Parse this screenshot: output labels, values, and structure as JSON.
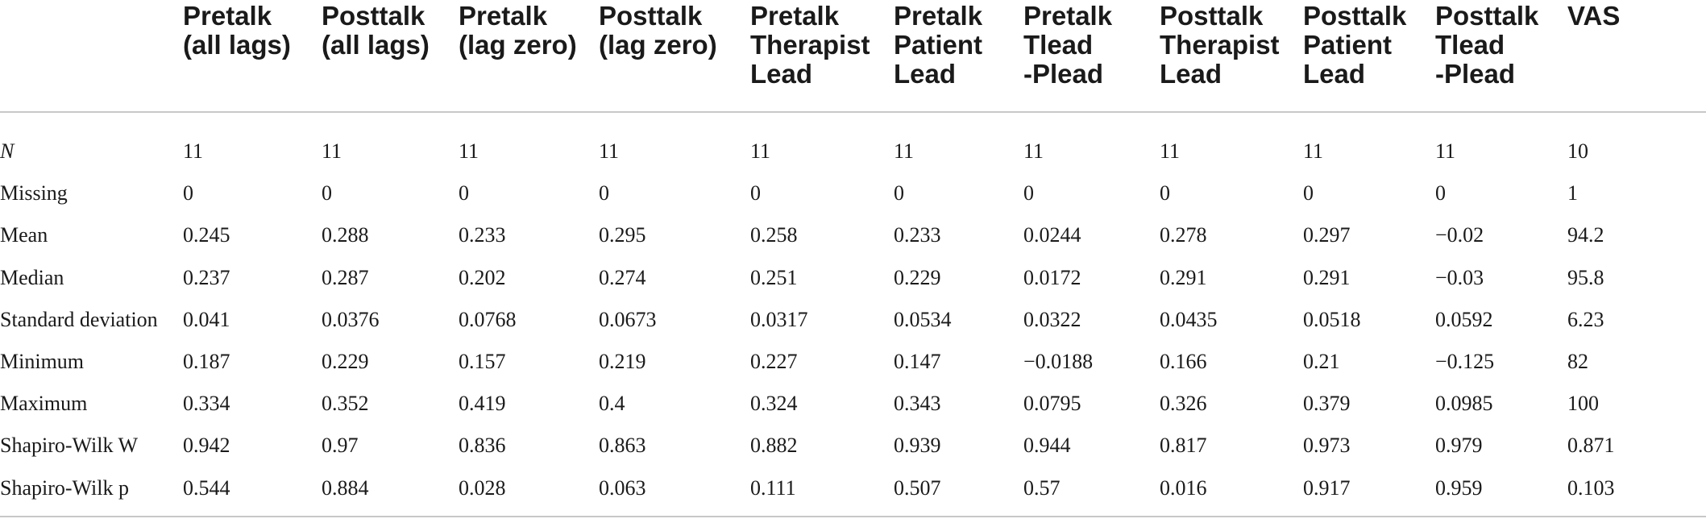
{
  "table": {
    "corner": "",
    "headers": [
      "Pretalk\n(all lags)",
      "Posttalk\n(all lags)",
      "Pretalk\n(lag zero)",
      "Posttalk\n(lag zero)",
      "Pretalk\nTherapist\nLead",
      "Pretalk\nPatient\nLead",
      "Pretalk\nTlead\n-Plead",
      "Posttalk\nTherapist\nLead",
      "Posttalk\nPatient\nLead",
      "Posttalk\nTlead\n-Plead",
      "VAS"
    ],
    "rows": [
      {
        "label": "N",
        "values": [
          "11",
          "11",
          "11",
          "11",
          "11",
          "11",
          "11",
          "11",
          "11",
          "11",
          "10"
        ]
      },
      {
        "label": "Missing",
        "values": [
          "0",
          "0",
          "0",
          "0",
          "0",
          "0",
          "0",
          "0",
          "0",
          "0",
          "1"
        ]
      },
      {
        "label": "Mean",
        "values": [
          "0.245",
          "0.288",
          "0.233",
          "0.295",
          "0.258",
          "0.233",
          "0.0244",
          "0.278",
          "0.297",
          "−0.02",
          "94.2"
        ]
      },
      {
        "label": "Median",
        "values": [
          "0.237",
          "0.287",
          "0.202",
          "0.274",
          "0.251",
          "0.229",
          "0.0172",
          "0.291",
          "0.291",
          "−0.03",
          "95.8"
        ]
      },
      {
        "label": "Standard deviation",
        "values": [
          "0.041",
          "0.0376",
          "0.0768",
          "0.0673",
          "0.0317",
          "0.0534",
          "0.0322",
          "0.0435",
          "0.0518",
          "0.0592",
          "6.23"
        ]
      },
      {
        "label": "Minimum",
        "values": [
          "0.187",
          "0.229",
          "0.157",
          "0.219",
          "0.227",
          "0.147",
          "−0.0188",
          "0.166",
          "0.21",
          "−0.125",
          "82"
        ]
      },
      {
        "label": "Maximum",
        "values": [
          "0.334",
          "0.352",
          "0.419",
          "0.4",
          "0.324",
          "0.343",
          "0.0795",
          "0.326",
          "0.379",
          "0.0985",
          "100"
        ]
      },
      {
        "label": "Shapiro-Wilk W",
        "values": [
          "0.942",
          "0.97",
          "0.836",
          "0.863",
          "0.882",
          "0.939",
          "0.944",
          "0.817",
          "0.973",
          "0.979",
          "0.871"
        ]
      },
      {
        "label": "Shapiro-Wilk p",
        "values": [
          "0.544",
          "0.884",
          "0.028",
          "0.063",
          "0.111",
          "0.507",
          "0.57",
          "0.016",
          "0.917",
          "0.959",
          "0.103"
        ]
      }
    ]
  }
}
